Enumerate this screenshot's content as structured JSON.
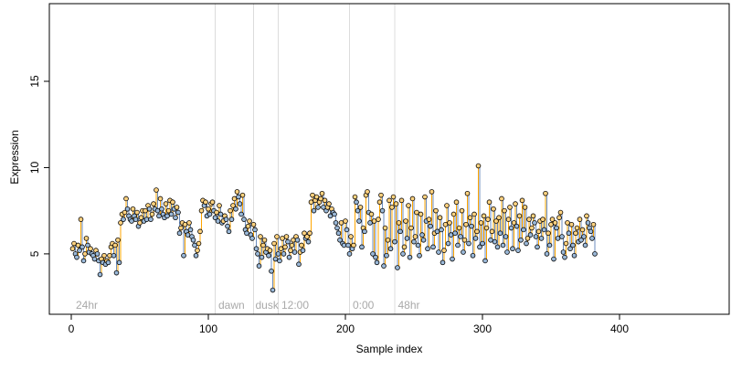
{
  "chart_data": {
    "type": "scatter",
    "title": "",
    "xlabel": "Sample index",
    "ylabel": "Expression",
    "xlim": [
      -16,
      480
    ],
    "ylim": [
      1.5,
      19.5
    ],
    "x_ticks": [
      0,
      100,
      200,
      300,
      400
    ],
    "y_ticks": [
      5,
      10,
      15
    ],
    "grid": false,
    "legend": "none",
    "section_boundaries": [
      105,
      133,
      151,
      203,
      236
    ],
    "section_labels": [
      {
        "text": "24hr",
        "x": 2
      },
      {
        "text": "dawn",
        "x": 106
      },
      {
        "text": "dusk",
        "x": 133
      },
      {
        "text": "12:00",
        "x": 152
      },
      {
        "text": "0:00",
        "x": 204
      },
      {
        "text": "48hr",
        "x": 237
      }
    ],
    "series": [
      {
        "values": [
          5.3,
          5.6,
          5.0,
          4.8,
          5.5,
          5.2,
          7.0,
          5.4,
          4.6,
          5.0,
          5.9,
          5.5,
          5.1,
          5.3,
          5.0,
          4.9,
          4.7,
          5.2,
          5.0,
          4.6,
          3.8,
          4.7,
          4.5,
          4.9,
          4.4,
          4.6,
          4.5,
          4.9,
          5.4,
          5.6,
          4.9,
          5.5,
          3.9,
          5.8,
          4.5,
          6.8,
          7.3,
          7.0,
          7.4,
          8.2,
          7.6,
          7.2,
          7.0,
          6.9,
          7.6,
          7.2,
          7.0,
          7.4,
          6.6,
          6.8,
          7.1,
          7.5,
          6.9,
          7.5,
          7.0,
          7.8,
          7.6,
          7.0,
          7.3,
          7.9,
          7.6,
          8.7,
          7.5,
          7.2,
          8.2,
          7.6,
          7.3,
          7.1,
          7.9,
          7.2,
          7.5,
          8.1,
          7.3,
          8.0,
          7.6,
          7.1,
          7.7,
          7.4,
          6.2,
          6.5,
          6.8,
          4.9,
          6.7,
          6.3,
          6.1,
          6.8,
          6.4,
          6.0,
          5.8,
          5.5,
          4.9,
          5.2,
          5.6,
          6.3,
          7.5,
          8.1,
          7.8,
          8.0,
          7.2,
          7.6,
          7.3,
          7.9,
          8.0,
          7.5,
          7.1,
          7.4,
          6.9,
          7.8,
          7.3,
          6.8,
          6.9,
          7.2,
          7.0,
          6.6,
          6.3,
          7.5,
          7.0,
          7.8,
          8.2,
          7.6,
          8.6,
          8.3,
          7.9,
          7.3,
          8.4,
          7.0,
          6.4,
          6.2,
          6.6,
          6.9,
          6.1,
          5.9,
          6.7,
          6.4,
          5.3,
          5.0,
          4.3,
          6.0,
          4.8,
          5.5,
          5.8,
          5.1,
          5.3,
          4.9,
          5.2,
          4.0,
          2.9,
          5.6,
          4.7,
          6.0,
          5.0,
          4.6,
          5.3,
          5.9,
          5.0,
          5.4,
          6.0,
          5.7,
          4.8,
          5.2,
          5.5,
          5.8,
          5.1,
          6.0,
          5.8,
          4.4,
          5.1,
          5.5,
          5.2,
          6.2,
          5.9,
          6.0,
          5.7,
          6.2,
          8.0,
          8.4,
          7.5,
          8.1,
          8.3,
          7.7,
          8.0,
          8.2,
          8.5,
          7.7,
          8.1,
          7.5,
          7.7,
          7.9,
          7.2,
          7.6,
          7.4,
          7.3,
          6.8,
          6.5,
          6.2,
          5.8,
          6.8,
          5.6,
          5.5,
          6.9,
          6.4,
          5.5,
          5.0,
          6.0,
          5.3,
          5.5,
          8.3,
          8.0,
          7.5,
          6.9,
          7.7,
          5.4,
          6.5,
          6.3,
          8.4,
          8.6,
          7.4,
          6.8,
          7.3,
          5.0,
          6.9,
          4.8,
          4.5,
          7.0,
          8.0,
          8.4,
          7.5,
          4.3,
          6.5,
          4.9,
          5.8,
          8.1,
          5.3,
          7.7,
          8.3,
          5.7,
          7.9,
          4.2,
          6.8,
          6.3,
          8.1,
          5.0,
          5.4,
          6.9,
          5.9,
          7.8,
          4.8,
          6.5,
          8.2,
          5.7,
          6.0,
          7.4,
          5.5,
          4.9,
          7.3,
          6.1,
          5.8,
          8.3,
          6.9,
          5.3,
          7.0,
          6.6,
          8.6,
          5.4,
          6.2,
          7.5,
          6.3,
          5.1,
          7.1,
          6.4,
          4.5,
          5.2,
          6.7,
          7.8,
          5.6,
          6.8,
          6.1,
          4.7,
          7.3,
          6.2,
          8.0,
          5.5,
          6.5,
          6.0,
          7.5,
          5.1,
          5.8,
          6.7,
          8.5,
          5.6,
          7.1,
          6.6,
          4.9,
          7.3,
          5.9,
          6.3,
          10.1,
          5.4,
          6.8,
          5.6,
          7.2,
          4.6,
          6.5,
          7.0,
          8.0,
          5.8,
          6.3,
          7.6,
          5.7,
          6.9,
          5.4,
          7.1,
          6.2,
          8.2,
          5.5,
          7.5,
          6.0,
          5.1,
          7.0,
          7.7,
          6.5,
          5.3,
          6.8,
          7.9,
          6.6,
          5.2,
          7.2,
          5.8,
          8.1,
          6.4,
          7.7,
          5.6,
          5.9,
          7.0,
          6.1,
          6.5,
          7.2,
          6.8,
          6.0,
          5.4,
          6.3,
          6.9,
          5.9,
          7.0,
          6.4,
          8.5,
          5.0,
          6.2,
          5.5,
          6.7,
          7.0,
          4.7,
          6.8,
          6.5,
          5.9,
          7.1,
          7.4,
          6.0,
          5.1,
          4.8,
          5.6,
          6.8,
          6.2,
          5.3,
          6.7,
          5.5,
          4.9,
          6.2,
          6.5,
          5.7,
          7.0,
          5.8,
          6.4,
          6.0,
          5.5,
          7.2,
          6.8,
          6.5,
          6.3,
          5.9,
          6.7,
          5.0
        ],
        "color_up": "#ffa500",
        "color_down": "#6c8ebf",
        "point_fill_up": "#ffd27f",
        "point_fill_down": "#9ab8d8"
      }
    ]
  }
}
